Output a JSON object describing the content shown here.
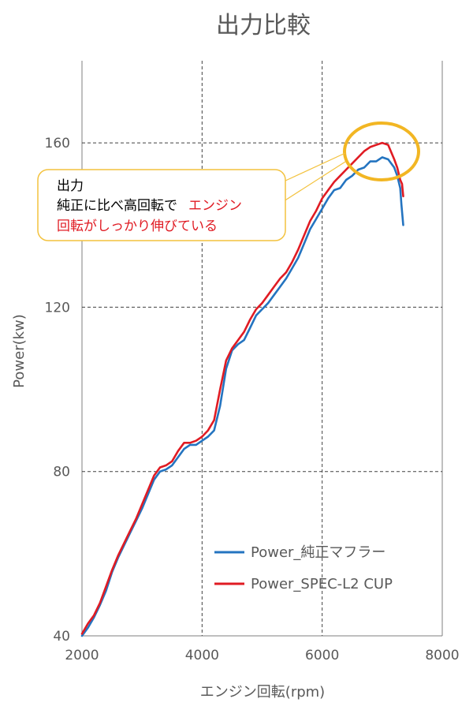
{
  "chart_data": {
    "type": "line",
    "title": "出力比較",
    "xlabel": "エンジン回転(rpm)",
    "ylabel": "Power(kw)",
    "xlim": [
      2000,
      8000
    ],
    "ylim": [
      40,
      180
    ],
    "xticks": [
      2000,
      4000,
      6000,
      8000
    ],
    "yticks": [
      40,
      80,
      120,
      160
    ],
    "grid": "dashed",
    "legend_position": "bottom-right",
    "series": [
      {
        "name": "Power_純正マフラー",
        "color": "#2474c0",
        "x": [
          2000,
          2100,
          2200,
          2300,
          2400,
          2500,
          2600,
          2700,
          2800,
          2900,
          3000,
          3100,
          3200,
          3300,
          3400,
          3500,
          3600,
          3700,
          3800,
          3900,
          4000,
          4100,
          4200,
          4300,
          4400,
          4500,
          4600,
          4700,
          4800,
          4900,
          5000,
          5100,
          5200,
          5300,
          5400,
          5500,
          5600,
          5700,
          5800,
          5900,
          6000,
          6100,
          6200,
          6300,
          6400,
          6500,
          6600,
          6700,
          6800,
          6900,
          7000,
          7100,
          7200,
          7250,
          7300,
          7320,
          7350
        ],
        "y": [
          40,
          42,
          44.5,
          47.5,
          51,
          55.5,
          59,
          62,
          65,
          68,
          71,
          74.5,
          78,
          80,
          80.5,
          81.5,
          83.5,
          85.5,
          86.5,
          86.5,
          87.5,
          88.5,
          90,
          96,
          105,
          109.5,
          111,
          112,
          115,
          118,
          119.5,
          121,
          123,
          125,
          127,
          129.5,
          132,
          135.5,
          139,
          141.5,
          144,
          146.5,
          148.5,
          149,
          151,
          152,
          153.5,
          154,
          155.5,
          155.5,
          156.5,
          156,
          154,
          152,
          149,
          145,
          140
        ]
      },
      {
        "name": "Power_SPEC-L2 CUP",
        "color": "#e01b23",
        "x": [
          2000,
          2100,
          2200,
          2300,
          2400,
          2500,
          2600,
          2700,
          2800,
          2900,
          3000,
          3100,
          3200,
          3300,
          3400,
          3500,
          3600,
          3700,
          3800,
          3900,
          4000,
          4100,
          4200,
          4300,
          4400,
          4500,
          4600,
          4700,
          4800,
          4900,
          5000,
          5100,
          5200,
          5300,
          5400,
          5500,
          5600,
          5700,
          5800,
          5900,
          6000,
          6100,
          6200,
          6300,
          6400,
          6500,
          6600,
          6700,
          6800,
          6900,
          7000,
          7100,
          7200,
          7250,
          7300,
          7330,
          7350
        ],
        "y": [
          40.5,
          43,
          45,
          48,
          52,
          56,
          59.5,
          62.5,
          65.5,
          68.5,
          72,
          75.5,
          79,
          81,
          81.5,
          82.5,
          85,
          87,
          87,
          87.5,
          88.5,
          90,
          92.5,
          100,
          107,
          110,
          112,
          114,
          117,
          119.5,
          121,
          123,
          125,
          127,
          128.5,
          131,
          134,
          137.5,
          141,
          143.5,
          146.5,
          148.5,
          150.5,
          152,
          153.5,
          155,
          156.5,
          158,
          159,
          159.5,
          160,
          159.5,
          156,
          154,
          151,
          150,
          147
        ]
      }
    ],
    "annotation": {
      "line1": "出力",
      "line2_black": "純正に比べ高回転で",
      "line2_red": "エンジン",
      "line3_red": "回転がしっかり伸びている",
      "border_color": "#f3c23e",
      "highlight_color": "#f2b623"
    }
  }
}
